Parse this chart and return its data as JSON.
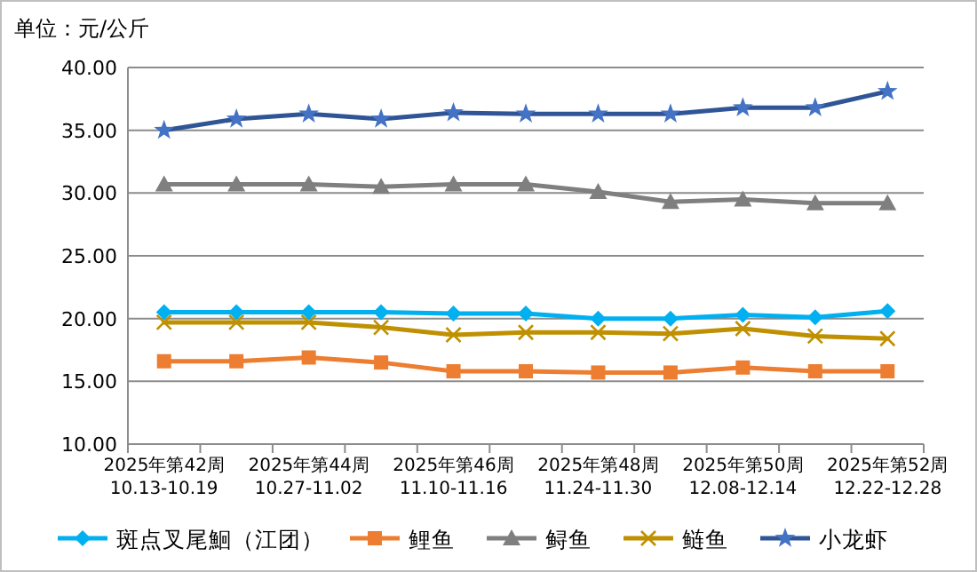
{
  "chart_data": {
    "type": "line",
    "title": "单位：元/公斤",
    "categories": [
      "2025年第42周 10.13-10.19",
      null,
      "2025年第44周 10.27-11.02",
      null,
      "2025年第46周 11.10-11.16",
      null,
      "2025年第48周 11.24-11.30",
      null,
      "2025年第50周 12.08-12.14",
      null,
      "2025年第52周 12.22-12.28"
    ],
    "series": [
      {
        "name": "斑点叉尾鮰（江团）",
        "color": "#00b0f0",
        "marker": "diamond",
        "values": [
          20.5,
          20.5,
          20.5,
          20.5,
          20.4,
          20.4,
          20.0,
          20.0,
          20.3,
          20.1,
          20.6
        ]
      },
      {
        "name": "鲤鱼",
        "color": "#ed7d31",
        "marker": "square",
        "values": [
          16.6,
          16.6,
          16.9,
          16.5,
          15.8,
          15.8,
          15.7,
          15.7,
          16.1,
          15.8,
          15.8
        ]
      },
      {
        "name": "鲟鱼",
        "color": "#7f7f7f",
        "marker": "triangle",
        "values": [
          30.7,
          30.7,
          30.7,
          30.5,
          30.7,
          30.7,
          30.1,
          29.3,
          29.5,
          29.2,
          29.2
        ]
      },
      {
        "name": "鲢鱼",
        "color": "#bf9000",
        "marker": "cross",
        "values": [
          19.7,
          19.7,
          19.7,
          19.3,
          18.7,
          18.9,
          18.9,
          18.8,
          19.2,
          18.6,
          18.4
        ]
      },
      {
        "name": "小龙虾",
        "color": "#2f5597",
        "marker": "star",
        "values": [
          35.0,
          35.9,
          36.3,
          35.9,
          36.4,
          36.3,
          36.3,
          36.3,
          36.8,
          36.8,
          38.1
        ]
      }
    ],
    "ylim": [
      10,
      40
    ],
    "yticks": [
      {
        "value": 10,
        "label": "10.00"
      },
      {
        "value": 15,
        "label": "15.00"
      },
      {
        "value": 20,
        "label": "20.00"
      },
      {
        "value": 25,
        "label": "25.00"
      },
      {
        "value": 30,
        "label": "30.00"
      },
      {
        "value": 35,
        "label": "35.00"
      },
      {
        "value": 40,
        "label": "40.00"
      }
    ],
    "grid": "y",
    "legend": "bottom"
  }
}
